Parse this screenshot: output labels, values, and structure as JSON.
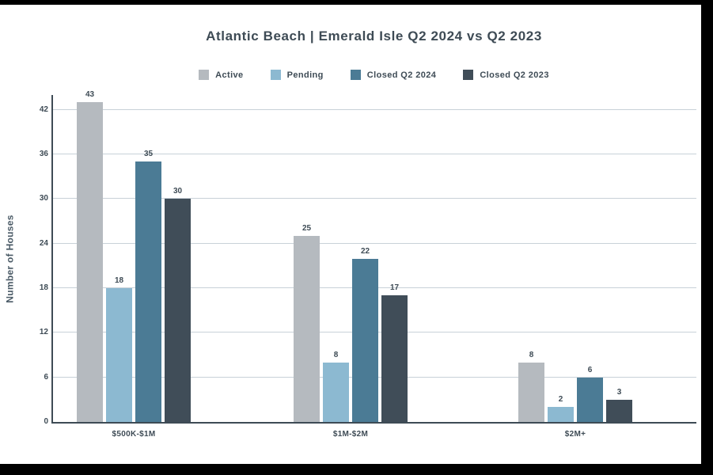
{
  "chart_data": {
    "type": "bar",
    "title": "Atlantic Beach | Emerald Isle Q2 2024 vs Q2 2023",
    "categories": [
      "$500K-$1M",
      "$1M-$2M",
      "$2M+"
    ],
    "series": [
      {
        "name": "Active",
        "color": "#b5babf",
        "values": [
          43,
          25,
          8
        ]
      },
      {
        "name": "Pending",
        "color": "#8cb9d1",
        "values": [
          18,
          8,
          2
        ]
      },
      {
        "name": "Closed Q2 2024",
        "color": "#4b7b95",
        "values": [
          35,
          22,
          6
        ]
      },
      {
        "name": "Closed Q2 2023",
        "color": "#404d58",
        "values": [
          30,
          17,
          3
        ]
      }
    ],
    "xlabel": "",
    "ylabel": "Number of Houses",
    "yticks": [
      0,
      6,
      12,
      18,
      24,
      30,
      36,
      42
    ],
    "ylim": [
      0,
      44
    ],
    "grid": true,
    "legend_position": "top",
    "colors": {
      "text": "#3e4b55",
      "gridline": "#c8d1d8",
      "axis": "#3e4b55",
      "background": "#ffffff"
    }
  }
}
